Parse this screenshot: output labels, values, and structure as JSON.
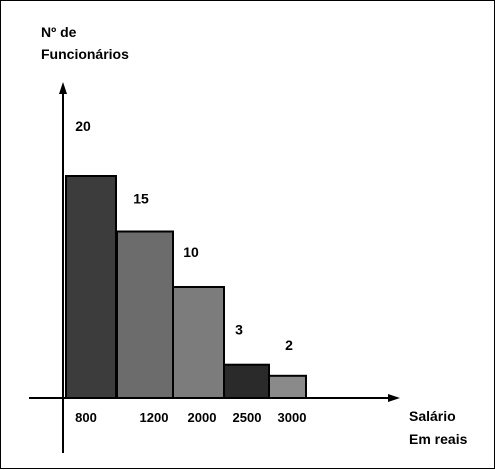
{
  "chart_data": {
    "type": "bar",
    "title": "",
    "ylabel_lines": [
      "Nº de",
      "Funcionários"
    ],
    "xlabel_lines": [
      "Salário",
      "Em reais"
    ],
    "categories": [
      "800",
      "1200",
      "2000",
      "2500",
      "3000"
    ],
    "values": [
      20,
      15,
      10,
      3,
      2
    ],
    "data_labels": [
      "20",
      "15",
      "10",
      "3",
      "2"
    ],
    "colors": [
      "#3c3c3c",
      "#6c6c6c",
      "#7c7c7c",
      "#2a2a2a",
      "#8a8a8a"
    ],
    "ylim": [
      0,
      20
    ],
    "grid": false,
    "legend": "none"
  }
}
